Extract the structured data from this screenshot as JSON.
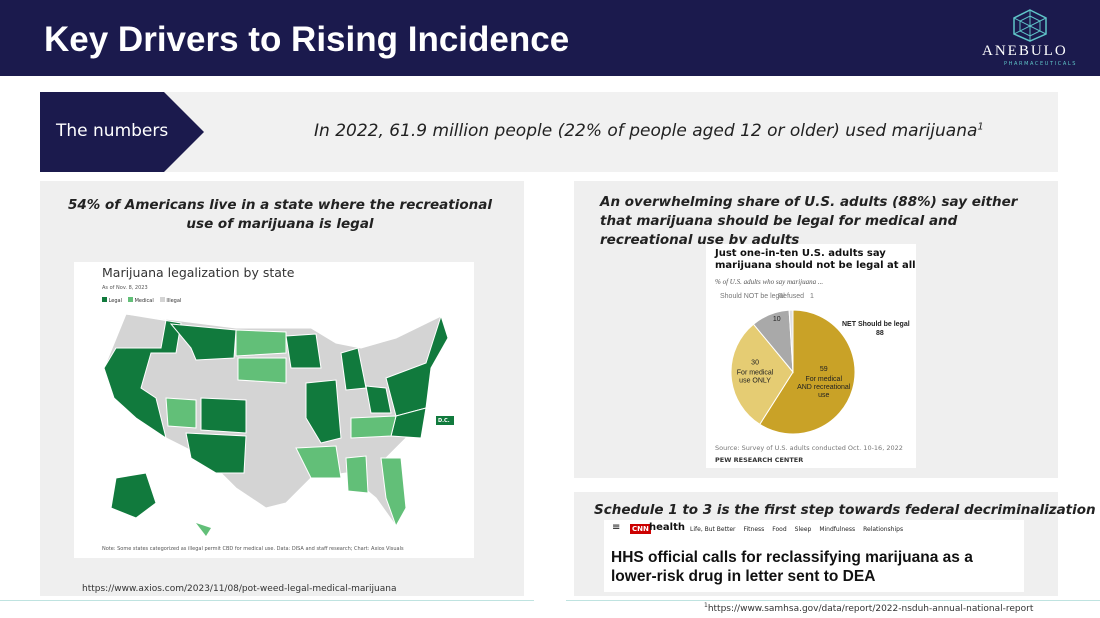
{
  "header": {
    "title": "Key Drivers to Rising Incidence",
    "logo": "ANEBULO",
    "logo_sub": "PHARMACEUTICALS"
  },
  "banner": {
    "label": "The numbers",
    "text": "In 2022, 61.9 million people (22% of people aged 12 or older) used marijuana",
    "sup": "1"
  },
  "left_panel": {
    "heading": "54% of Americans live in a state where the recreational use of marijuana is legal",
    "map": {
      "title": "Marijuana legalization by state",
      "date": "As of Nov. 8, 2023",
      "legend": [
        "Legal",
        "Medical",
        "Illegal"
      ],
      "callout": "D.C.",
      "note": "Note: Some states categorized as illegal permit CBD for medical use. Data: DISA and staff research; Chart: Axios Visuals"
    },
    "source": "https://www.axios.com/2023/11/08/pot-weed-legal-medical-marijuana"
  },
  "right_panel": {
    "heading": "An overwhelming share of U.S. adults (88%) say either that marijuana should be legal for medical and recreational use by adults",
    "pie": {
      "title": "Just one-in-ten U.S. adults say marijuana should not be legal at all",
      "subtitle": "% of U.S. adults who say marijuana ...",
      "slices": [
        {
          "label": "For medical AND recreational use",
          "value": 59,
          "color": "#c9a227"
        },
        {
          "label": "For medical use ONLY",
          "value": 30,
          "color": "#e5cc73"
        },
        {
          "label": "Should NOT be legal",
          "value": 10,
          "color": "#a9a9a9"
        },
        {
          "label": "Refused",
          "value": 1,
          "color": "#e0e0e0"
        }
      ],
      "net_label": "NET Should be legal",
      "net_value": 88,
      "source": "Source: Survey of U.S. adults conducted Oct. 10-16, 2022",
      "credit": "PEW RESEARCH CENTER"
    }
  },
  "bottom_panel": {
    "heading": "Schedule 1 to 3 is the first step towards federal decriminalization",
    "brand_logo": "CNN",
    "brand": "health",
    "nav": [
      "Life, But Better",
      "Fitness",
      "Food",
      "Sleep",
      "Mindfulness",
      "Relationships"
    ],
    "headline": "HHS official calls for reclassifying marijuana as a lower-risk drug in letter sent to DEA"
  },
  "footnote": {
    "sup": "1",
    "text": "https://www.samhsa.gov/data/report/2022-nsduh-annual-national-report"
  }
}
